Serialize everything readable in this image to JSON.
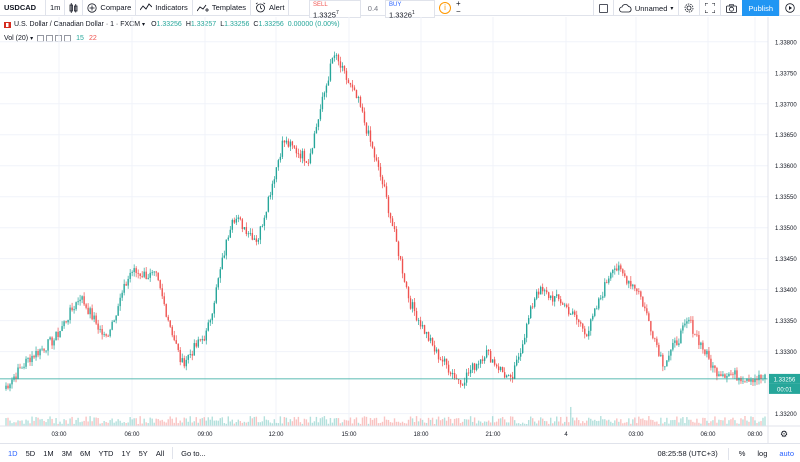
{
  "toolbar": {
    "symbol": "USDCAD",
    "interval": "1m",
    "compare_label": "Compare",
    "indicators_label": "Indicators",
    "templates_label": "Templates",
    "alert_label": "Alert",
    "sell_label": "SELL",
    "sell_price": "1.3325",
    "sell_sup": "7",
    "spread": "0.4",
    "buy_label": "BUY",
    "buy_price": "1.3326",
    "buy_sup": "1",
    "plus": "+",
    "minus": "−",
    "layout_name": "Unnamed",
    "publish_label": "Publish",
    "icons": [
      "candles-icon",
      "compare-plus-icon",
      "indicators-icon",
      "templates-icon",
      "alert-clock-icon",
      "info-icon",
      "checkbox-icon",
      "cloud-icon",
      "gear-icon",
      "fullscreen-icon",
      "camera-icon",
      "play-icon"
    ]
  },
  "legend": {
    "title": "U.S. Dollar / Canadian Dollar · 1 · FXCM",
    "o_key": "O",
    "o_val": "1.33256",
    "h_key": "H",
    "h_val": "1.33257",
    "l_key": "L",
    "l_val": "1.33256",
    "c_key": "C",
    "c_val": "1.33256",
    "change": "0.00000 (0.00%)",
    "vol_label": "Vol (20)",
    "vol_val1": "15",
    "vol_val2": "22"
  },
  "price_axis": {
    "ticks": [
      "1.33800",
      "1.33750",
      "1.33700",
      "1.33650",
      "1.33600",
      "1.33550",
      "1.33500",
      "1.33450",
      "1.33400",
      "1.33350",
      "1.33300",
      "1.33200"
    ],
    "last_price": "1.33256",
    "countdown": "00:01"
  },
  "time_axis": {
    "ticks": [
      "03:00",
      "06:00",
      "09:00",
      "12:00",
      "15:00",
      "18:00",
      "21:00",
      "4",
      "03:00",
      "06:00",
      "08:00"
    ]
  },
  "bottom_bar": {
    "ranges": [
      "1D",
      "5D",
      "1M",
      "3M",
      "6M",
      "YTD",
      "1Y",
      "5Y",
      "All"
    ],
    "active_range": "1D",
    "goto_label": "Go to...",
    "clock": "08:25:58 (UTC+3)",
    "percent_label": "%",
    "log_label": "log",
    "auto_label": "auto"
  },
  "colors": {
    "up": "#26a69a",
    "down": "#ef5350",
    "accent": "#2196f3",
    "price_line": "#26a69a"
  },
  "chart_data": {
    "type": "candlestick",
    "symbol": "USDCAD",
    "ylim": [
      1.3318,
      1.3384
    ],
    "grid": true,
    "series_anchors": [
      {
        "t": "01:00",
        "price": 1.3324
      },
      {
        "t": "02:00",
        "price": 1.3329
      },
      {
        "t": "03:00",
        "price": 1.3332
      },
      {
        "t": "04:00",
        "price": 1.3339
      },
      {
        "t": "05:30",
        "price": 1.3332
      },
      {
        "t": "06:30",
        "price": 1.3343
      },
      {
        "t": "08:00",
        "price": 1.3342
      },
      {
        "t": "09:00",
        "price": 1.3328
      },
      {
        "t": "10:00",
        "price": 1.3333
      },
      {
        "t": "11:00",
        "price": 1.3352
      },
      {
        "t": "12:00",
        "price": 1.3348
      },
      {
        "t": "13:00",
        "price": 1.3364
      },
      {
        "t": "14:30",
        "price": 1.3361
      },
      {
        "t": "15:20",
        "price": 1.3378
      },
      {
        "t": "16:00",
        "price": 1.337
      },
      {
        "t": "17:00",
        "price": 1.3356
      },
      {
        "t": "18:00",
        "price": 1.3338
      },
      {
        "t": "19:00",
        "price": 1.333
      },
      {
        "t": "20:00",
        "price": 1.3325
      },
      {
        "t": "21:00",
        "price": 1.333
      },
      {
        "t": "22:00",
        "price": 1.3325
      },
      {
        "t": "23:00",
        "price": 1.334
      },
      {
        "t": "00:00",
        "price": 1.3338
      },
      {
        "t": "01:00",
        "price": 1.3333
      },
      {
        "t": "02:00",
        "price": 1.3344
      },
      {
        "t": "03:00",
        "price": 1.334
      },
      {
        "t": "04:00",
        "price": 1.3328
      },
      {
        "t": "05:00",
        "price": 1.3335
      },
      {
        "t": "06:00",
        "price": 1.3327
      },
      {
        "t": "07:00",
        "price": 1.3326
      },
      {
        "t": "08:25",
        "price": 1.33256
      }
    ]
  }
}
